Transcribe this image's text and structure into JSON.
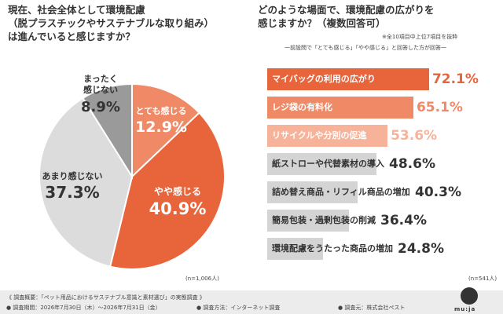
{
  "left_question": [
    "現在、社会全体として環境配慮",
    "（脱プラスチックやサステナブルな取り組み）",
    "は進んでいると感じますか？"
  ],
  "right_question": [
    "どのような場面で、環境配慮の広がりを",
    "感じますか？（複数回答可）"
  ],
  "right_note1": "※全10項目中上位7項目を抜粋",
  "right_note2": "一前設問で「とても感じる」「やや感じる」と回答した方が回答一",
  "left_n": "(n=1,006人)",
  "right_n": "(n=541人)",
  "colors": {
    "strong": "#e8643a",
    "mid": "#f08a66",
    "light": "#f7b39a",
    "gray": "#d4d4d4",
    "dark_gray": "#9a9a9a"
  },
  "footer": {
    "line1": "《 調査概要：「ペット用品におけるサステナブル意識と素材選び」の実態調査 》",
    "line2a": "● 調査期間：2026年7月30日（木）〜2026年7月31日（金）",
    "line2b": "● 調査方法：インターネット調査",
    "line2c": "● 調査元：株式会社ペスト",
    "logo_text": "mu:ja"
  },
  "chart_data": [
    {
      "type": "pie",
      "slices": [
        {
          "label": "とても感じる",
          "value": 12.9,
          "value_text": "12.9%",
          "color": "#f08a66"
        },
        {
          "label": "やや感じる",
          "value": 40.9,
          "value_text": "40.9%",
          "color": "#e8643a"
        },
        {
          "label": "あまり感じない",
          "value": 37.3,
          "value_text": "37.3%",
          "color": "#dcdcdc"
        },
        {
          "label": "まったく感じない",
          "value": 8.9,
          "value_text": "8.9%",
          "color": "#9a9a9a"
        }
      ]
    },
    {
      "type": "bar",
      "orientation": "horizontal",
      "categories": [
        "マイバッグの利用の広がり",
        "レジ袋の有料化",
        "リサイクルや分別の促進",
        "紙ストローや代替素材の導入",
        "詰め替え商品・リフィル商品の増加",
        "簡易包装・過剰包装の削減",
        "環境配慮をうたった商品の増加"
      ],
      "values": [
        72.1,
        65.1,
        53.6,
        48.6,
        40.3,
        36.4,
        24.8
      ],
      "value_texts": [
        "72.1%",
        "65.1%",
        "53.6%",
        "48.6%",
        "40.3%",
        "36.4%",
        "24.8%"
      ],
      "colors": [
        "#e8643a",
        "#f08a66",
        "#f7b39a",
        "#d4d4d4",
        "#d4d4d4",
        "#d4d4d4",
        "#d4d4d4"
      ],
      "label_colors": [
        "#ffffff",
        "#ffffff",
        "#ffffff",
        "#333333",
        "#333333",
        "#333333",
        "#333333"
      ],
      "value_colors": [
        "#e8643a",
        "#f08a66",
        "#f7b39a",
        "#333333",
        "#333333",
        "#333333",
        "#333333"
      ],
      "xlim": [
        0,
        100
      ]
    }
  ]
}
